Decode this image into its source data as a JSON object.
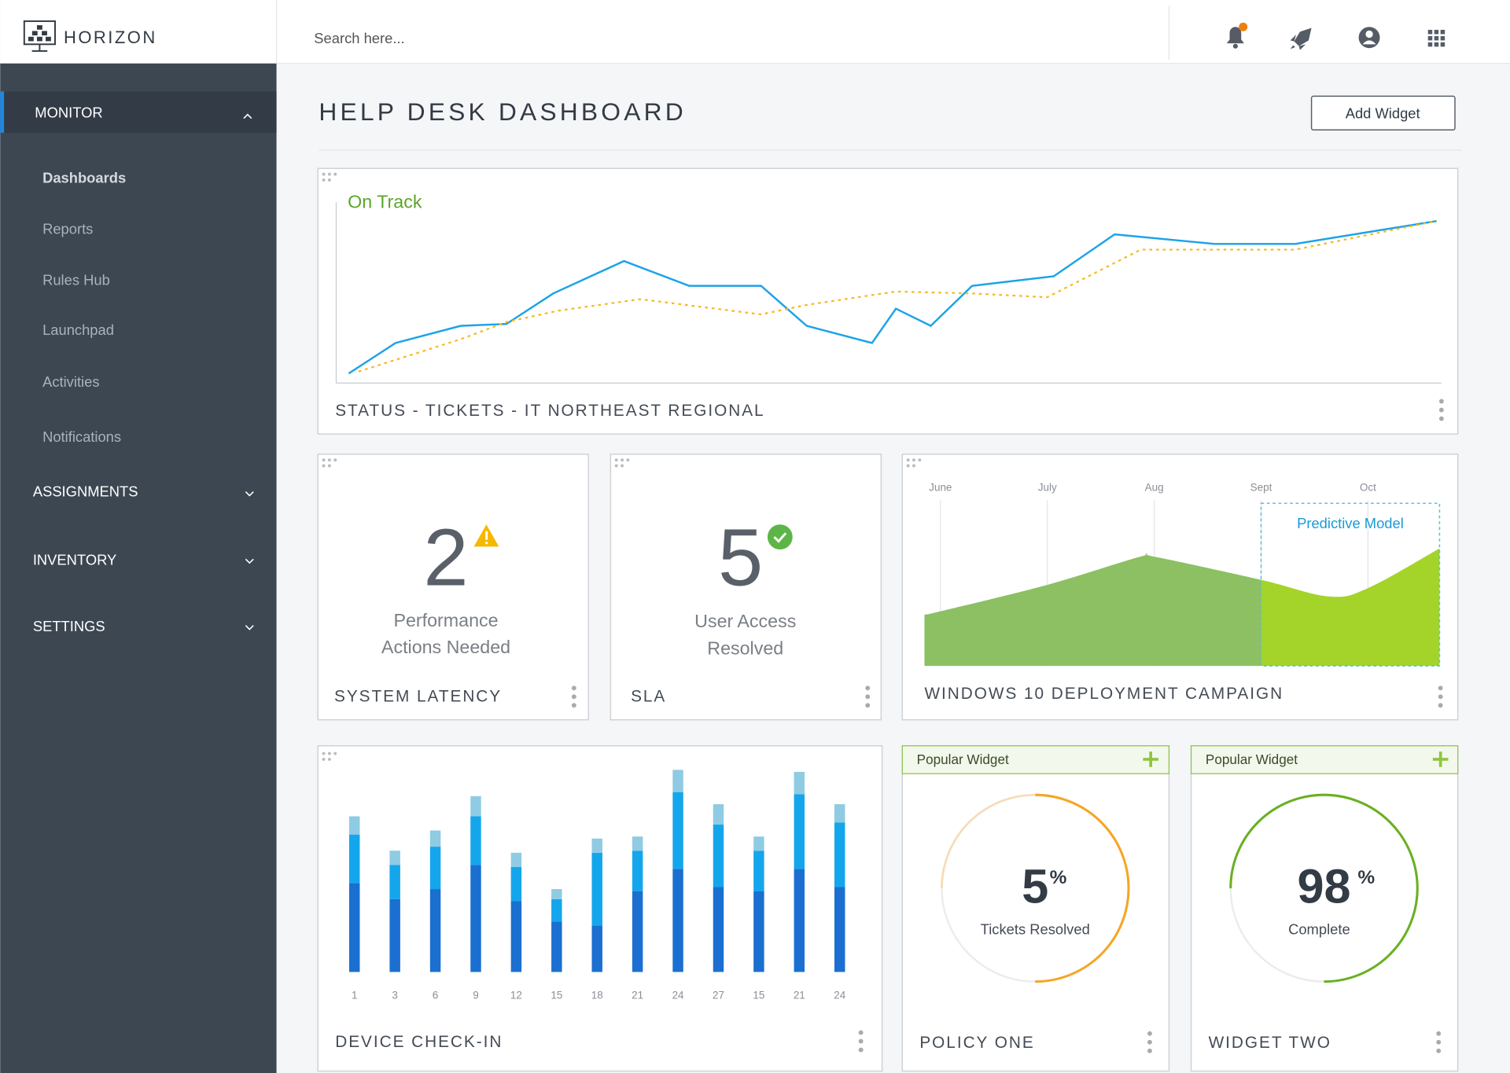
{
  "header": {
    "brand": "HORIZON",
    "search_placeholder": "Search here..."
  },
  "sidebar": {
    "sections": [
      {
        "label": "MONITOR",
        "items": [
          "Dashboards",
          "Reports",
          "Rules Hub",
          "Launchpad",
          "Activities",
          "Notifications"
        ]
      },
      {
        "label": "ASSIGNMENTS"
      },
      {
        "label": "INVENTORY"
      },
      {
        "label": "SETTINGS"
      }
    ]
  },
  "page": {
    "title": "HELP DESK DASHBOARD",
    "add_widget": "Add Widget"
  },
  "chart_data": [
    {
      "type": "line",
      "title": "STATUS - TICKETS - IT NORTHEAST REGIONAL",
      "annotation": "On Track",
      "xlim": [
        0,
        100
      ],
      "ylim": [
        0,
        100
      ],
      "series": [
        {
          "color": "#1aa3e8",
          "x": [
            0,
            4.3,
            10.3,
            14.5,
            18.8,
            25.3,
            31.3,
            37.9,
            42.1,
            48.1,
            50.3,
            53.5,
            57.3,
            64.8,
            70.4,
            79.6,
            87,
            100
          ],
          "values": [
            5,
            21,
            30,
            31,
            47,
            64,
            51,
            51,
            30,
            21,
            39,
            30,
            51,
            56,
            78,
            73,
            73,
            85
          ]
        },
        {
          "color": "#f5b921",
          "dashed": true,
          "x": [
            0.9,
            10.3,
            14.5,
            19.3,
            26.8,
            37.9,
            42.1,
            50.3,
            57.3,
            64.2,
            72.8,
            87,
            100
          ],
          "values": [
            6,
            23,
            32,
            38,
            44,
            36,
            41,
            48,
            47,
            45,
            70,
            70,
            85
          ]
        }
      ]
    },
    {
      "type": "area",
      "title": "WINDOWS 10 DEPLOYMENT CAMPAIGN",
      "xlim": [
        -0.15,
        4.67
      ],
      "ylim": [
        0,
        100
      ],
      "xticks": [
        {
          "value": 0,
          "label": "June"
        },
        {
          "value": 1,
          "label": "July"
        },
        {
          "value": 2,
          "label": "Aug"
        },
        {
          "value": 3,
          "label": "Sept"
        },
        {
          "value": 4,
          "label": "Oct"
        }
      ],
      "color": "#8cc063",
      "x": [
        -0.15,
        0,
        1,
        1.87,
        2,
        3,
        3.63,
        4,
        4.67
      ],
      "values": [
        31,
        33,
        49,
        66,
        66,
        52,
        42,
        47,
        71
      ],
      "predictive": {
        "label": "Predictive Model",
        "from": 3,
        "color": "#a4d42a"
      }
    },
    {
      "type": "bar",
      "stacked": true,
      "title": "DEVICE CHECK-IN",
      "ylim": [
        0,
        100
      ],
      "categories": [
        "1",
        "3",
        "6",
        "9",
        "12",
        "15",
        "18",
        "21",
        "24",
        "27",
        "15",
        "21",
        "24"
      ],
      "series": [
        {
          "color": "#1a6fd1",
          "values": [
            44,
            36,
            41,
            53,
            35,
            25,
            23,
            40,
            51,
            42,
            40,
            51,
            42
          ]
        },
        {
          "color": "#14a6ec",
          "values": [
            24,
            17,
            21,
            24,
            17,
            11,
            36,
            20,
            38,
            31,
            20,
            37,
            32
          ]
        },
        {
          "color": "#8fcbe3",
          "values": [
            9,
            7,
            8,
            10,
            7,
            5,
            7,
            7,
            11,
            10,
            7,
            11,
            9
          ]
        }
      ]
    }
  ],
  "widgets": {
    "latency": {
      "value": 2,
      "caption": [
        "Performance",
        "Actions Needed"
      ],
      "title": "SYSTEM LATENCY"
    },
    "sla": {
      "value": 5,
      "caption": [
        "User Access",
        "Resolved"
      ],
      "title": "SLA"
    },
    "policy": {
      "badge": "Popular Widget",
      "value": 5,
      "unit": "%",
      "caption": "Tickets Resolved",
      "title": "POLICY ONE"
    },
    "widget_two": {
      "badge": "Popular Widget",
      "value": 98,
      "unit": "%",
      "caption": "Complete",
      "title": "WIDGET TWO"
    }
  }
}
